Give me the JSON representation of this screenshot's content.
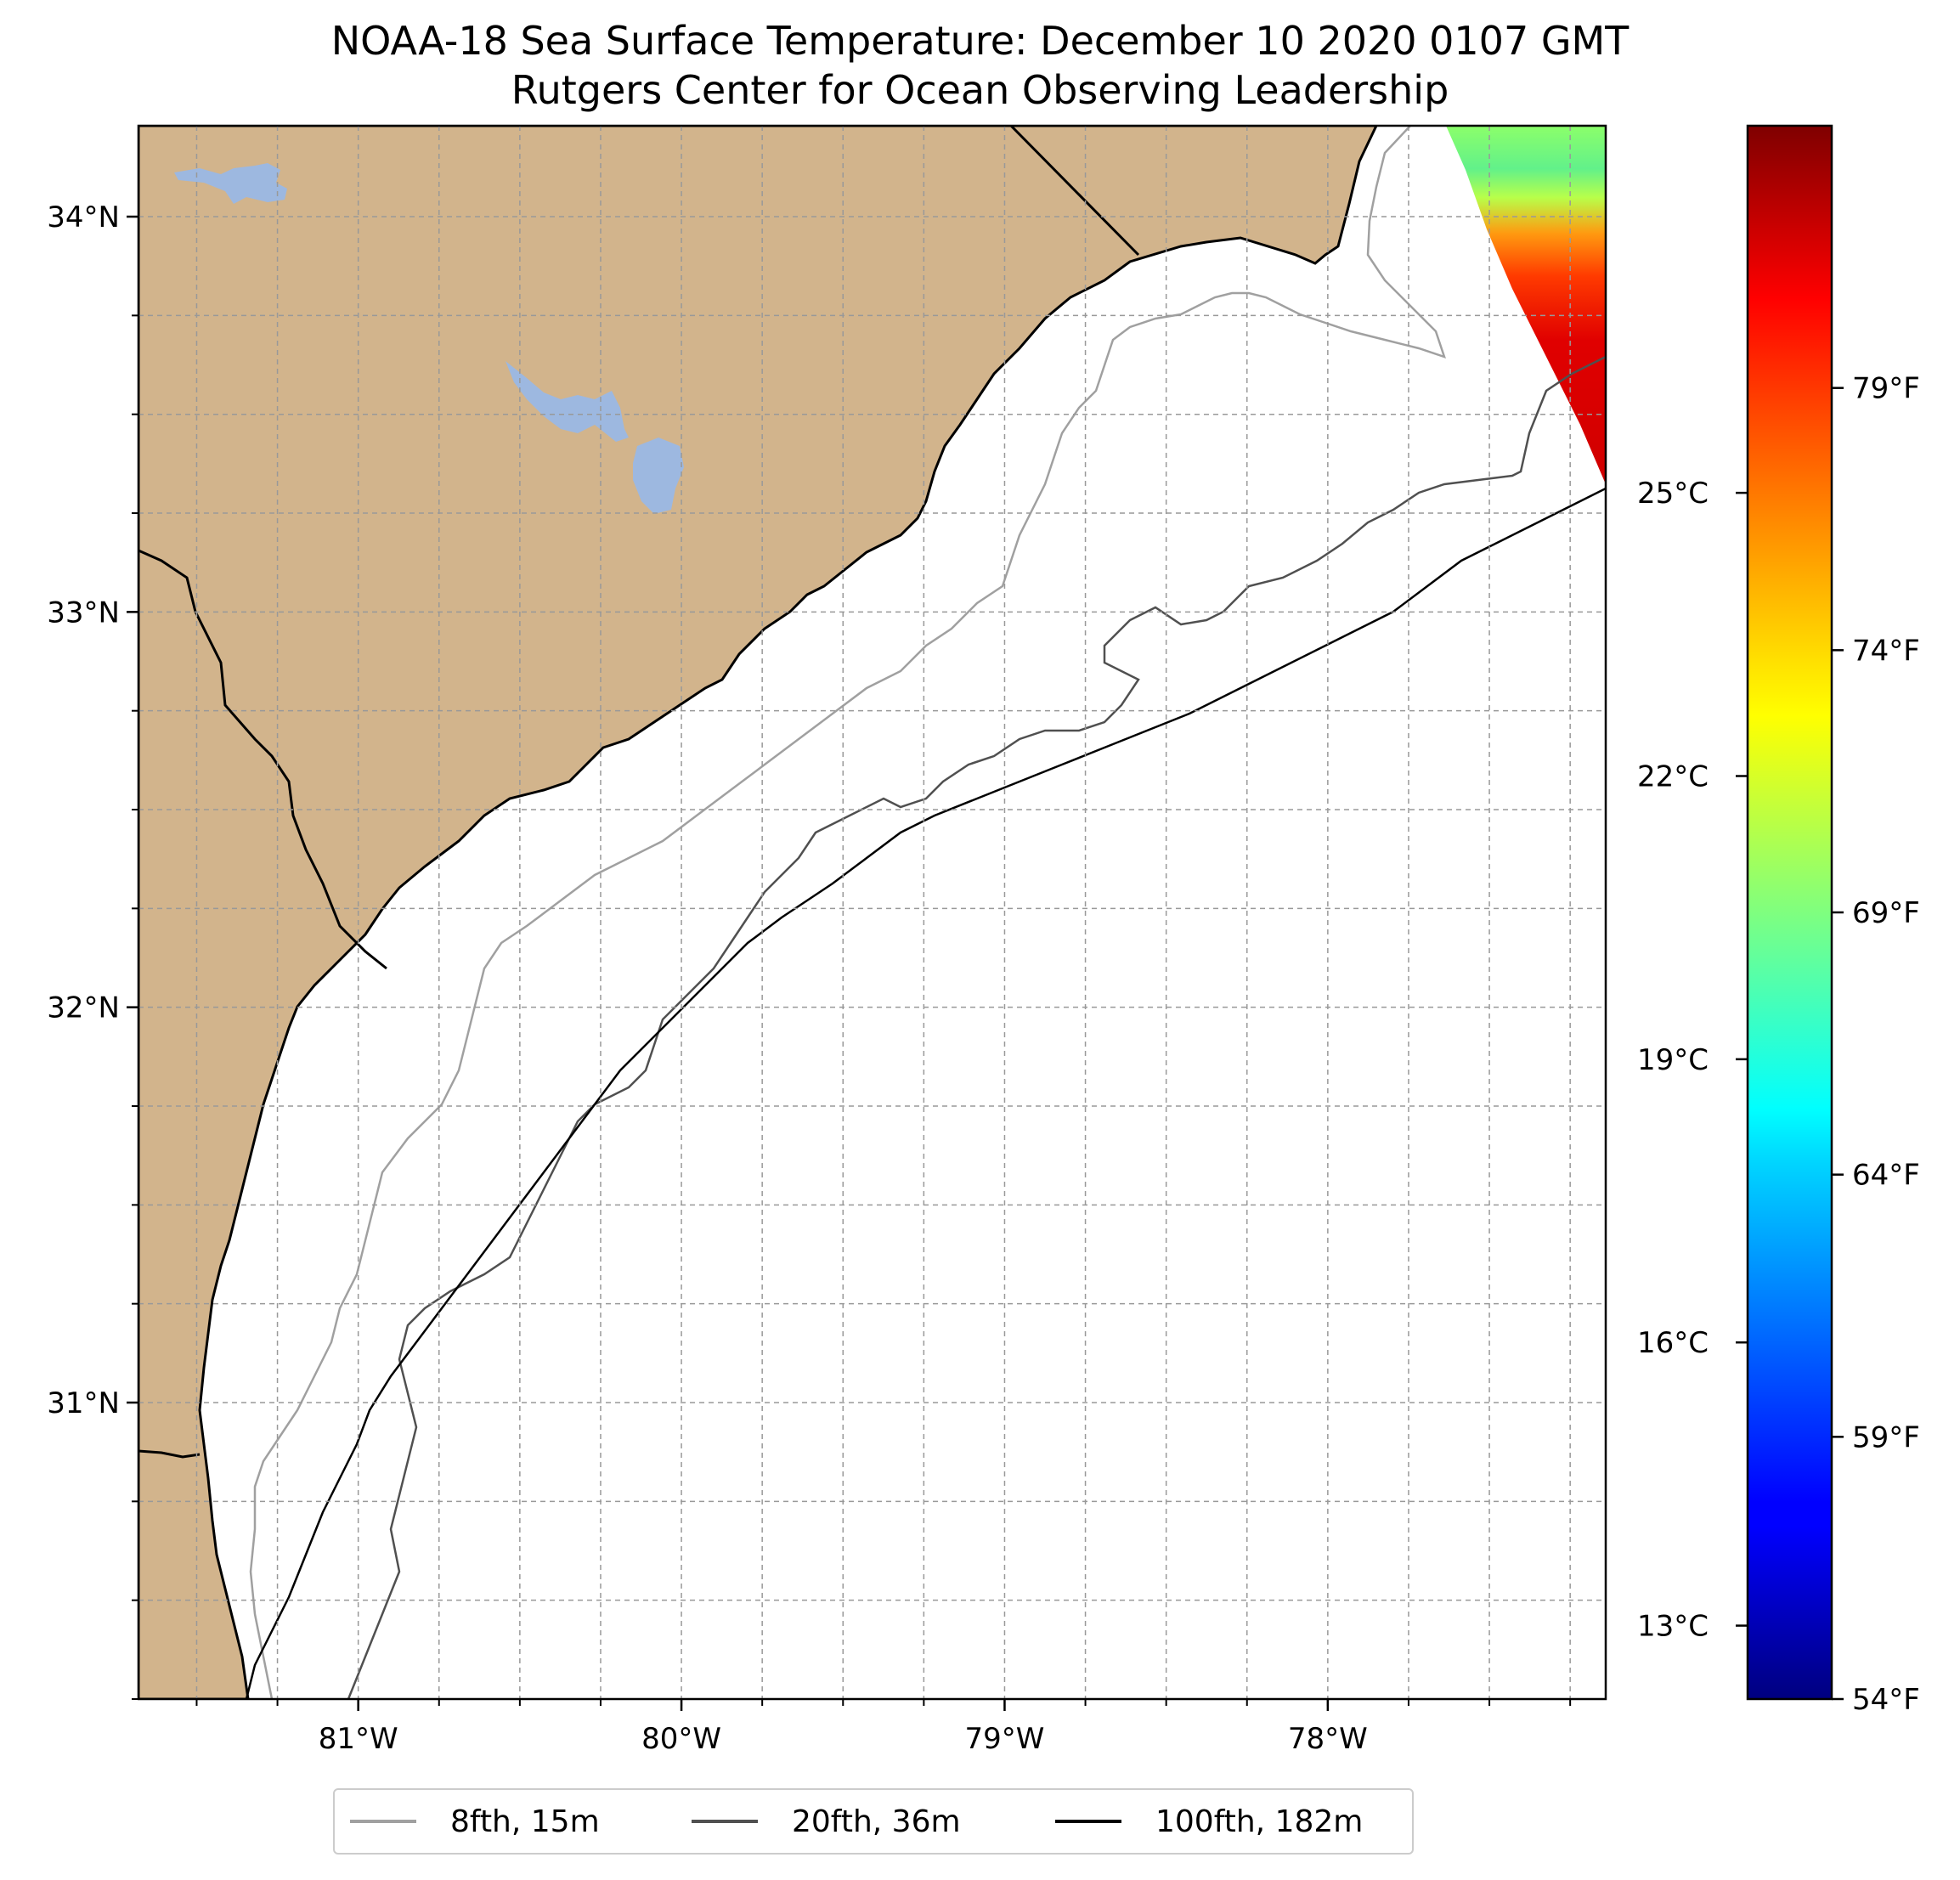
{
  "title": {
    "line1": "NOAA-18 Sea Surface Temperature: December 10 2020 0107 GMT",
    "line2": "Rutgers Center for Ocean Observing Leadership"
  },
  "map": {
    "extent": {
      "lon_min": -81.68,
      "lon_max": -77.14,
      "lat_min": 30.25,
      "lat_max": 34.23
    },
    "lon_ticks": [
      {
        "value": -81,
        "label": "81°W"
      },
      {
        "value": -80,
        "label": "80°W"
      },
      {
        "value": -79,
        "label": "79°W"
      },
      {
        "value": -78,
        "label": "78°W"
      }
    ],
    "lat_ticks": [
      {
        "value": 31,
        "label": "31°N"
      },
      {
        "value": 32,
        "label": "32°N"
      },
      {
        "value": 33,
        "label": "33°N"
      },
      {
        "value": 34,
        "label": "34°N"
      }
    ],
    "gridlines": true,
    "land_color": "#d2b48c",
    "water_color": "#ffffff",
    "lake_color": "#9db8e0"
  },
  "colorbar": {
    "colormap": "jet",
    "celsius_ticks": [
      {
        "value": 13,
        "label": "13°C"
      },
      {
        "value": 16,
        "label": "16°C"
      },
      {
        "value": 19,
        "label": "19°C"
      },
      {
        "value": 22,
        "label": "22°C"
      },
      {
        "value": 25,
        "label": "25°C"
      }
    ],
    "fahrenheit_ticks": [
      {
        "value": 54,
        "label": "54°F"
      },
      {
        "value": 59,
        "label": "59°F"
      },
      {
        "value": 64,
        "label": "64°F"
      },
      {
        "value": 69,
        "label": "69°F"
      },
      {
        "value": 74,
        "label": "74°F"
      },
      {
        "value": 79,
        "label": "79°F"
      }
    ],
    "range_f": [
      54,
      84
    ]
  },
  "legend": {
    "placement": "bottom-center",
    "items": [
      {
        "label": "8fth, 15m",
        "color": "#a0a0a0"
      },
      {
        "label": "20fth, 36m",
        "color": "#505050"
      },
      {
        "label": "100fth, 182m",
        "color": "#000000"
      }
    ]
  }
}
